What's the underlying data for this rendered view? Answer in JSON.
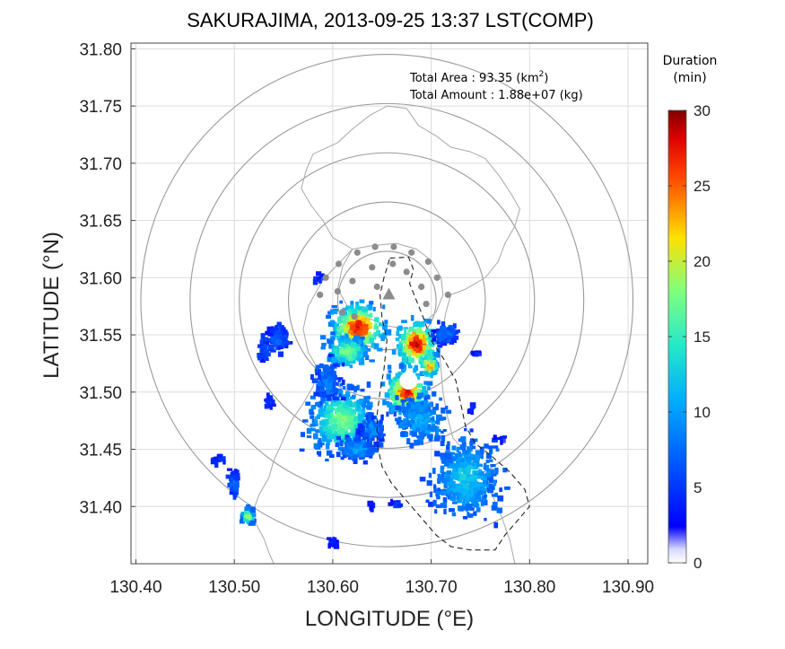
{
  "chart_data": {
    "type": "heatmap",
    "title": "SAKURAJIMA, 2013-09-25 13:37 LST(COMP)",
    "xlabel": "LONGITUDE (°E)",
    "ylabel": "LATITUDE (°N)",
    "xlim": [
      130.395,
      130.92
    ],
    "ylim": [
      31.35,
      31.805
    ],
    "xticks": [
      "130.40",
      "130.50",
      "130.60",
      "130.70",
      "130.80",
      "130.90"
    ],
    "xtick_values": [
      130.4,
      130.5,
      130.6,
      130.7,
      130.8,
      130.9
    ],
    "yticks": [
      "31.40",
      "31.45",
      "31.50",
      "31.55",
      "31.60",
      "31.65",
      "31.70",
      "31.75",
      "31.80"
    ],
    "ytick_values": [
      31.4,
      31.45,
      31.5,
      31.55,
      31.6,
      31.65,
      31.7,
      31.75,
      31.8
    ],
    "grid": true,
    "annotations": {
      "area_label": "Total Area   : 93.35 (km",
      "area_sup": "2",
      "area_close": ")",
      "amount_label": "Total Amount : 1.88e+07 (kg)"
    },
    "colorbar": {
      "title_line1": "Duration",
      "title_line2": "(min)",
      "min": 0,
      "max": 30,
      "ticks": [
        "0",
        "5",
        "10",
        "15",
        "20",
        "25",
        "30"
      ],
      "tick_values": [
        0,
        5,
        10,
        15,
        20,
        25,
        30
      ]
    },
    "range_rings": {
      "center": [
        130.655,
        31.58
      ],
      "radius_deg": [
        0.05,
        0.1,
        0.15,
        0.2,
        0.25
      ]
    },
    "vent": [
      130.657,
      31.585
    ],
    "stations": [
      [
        130.625,
        31.622
      ],
      [
        130.643,
        31.627
      ],
      [
        130.662,
        31.627
      ],
      [
        130.68,
        31.622
      ],
      [
        130.697,
        31.614
      ],
      [
        130.606,
        31.612
      ],
      [
        130.593,
        31.6
      ],
      [
        130.587,
        31.585
      ],
      [
        130.706,
        31.6
      ],
      [
        130.717,
        31.585
      ],
      [
        130.61,
        31.57
      ],
      [
        130.622,
        31.566
      ],
      [
        130.64,
        31.609
      ],
      [
        130.661,
        31.612
      ],
      [
        130.675,
        31.605
      ],
      [
        130.69,
        31.592
      ],
      [
        130.62,
        31.597
      ],
      [
        130.605,
        31.588
      ],
      [
        130.695,
        31.577
      ],
      [
        130.645,
        31.592
      ]
    ],
    "coastline": [
      [
        130.62,
        31.625
      ],
      [
        130.6,
        31.635
      ],
      [
        130.59,
        31.65
      ],
      [
        130.578,
        31.663
      ],
      [
        130.568,
        31.678
      ],
      [
        130.573,
        31.694
      ],
      [
        130.58,
        31.708
      ],
      [
        130.605,
        31.718
      ],
      [
        130.62,
        31.73
      ],
      [
        130.638,
        31.742
      ],
      [
        130.655,
        31.75
      ],
      [
        130.675,
        31.748
      ],
      [
        130.687,
        31.733
      ],
      [
        130.705,
        31.724
      ],
      [
        130.72,
        31.714
      ],
      [
        130.74,
        31.71
      ],
      [
        130.755,
        31.704
      ],
      [
        130.77,
        31.688
      ],
      [
        130.782,
        31.672
      ],
      [
        130.79,
        31.66
      ],
      [
        130.785,
        31.645
      ],
      [
        130.775,
        31.63
      ],
      [
        130.768,
        31.614
      ],
      [
        130.755,
        31.6
      ],
      [
        130.735,
        31.59
      ],
      [
        130.72,
        31.585
      ],
      [
        130.715,
        31.57
      ],
      [
        130.712,
        31.556
      ],
      [
        130.708,
        31.54
      ],
      [
        130.71,
        31.52
      ],
      [
        130.712,
        31.5
      ],
      [
        130.716,
        31.48
      ],
      [
        130.722,
        31.46
      ],
      [
        130.738,
        31.445
      ],
      [
        130.752,
        31.43
      ],
      [
        130.762,
        31.41
      ],
      [
        130.772,
        31.39
      ],
      [
        130.78,
        31.37
      ],
      [
        130.785,
        31.35
      ]
    ],
    "coastline_west": [
      [
        130.62,
        31.625
      ],
      [
        130.59,
        31.598
      ],
      [
        130.575,
        31.575
      ],
      [
        130.57,
        31.555
      ],
      [
        130.575,
        31.535
      ],
      [
        130.585,
        31.52
      ],
      [
        130.58,
        31.505
      ],
      [
        130.57,
        31.49
      ],
      [
        130.558,
        31.475
      ],
      [
        130.548,
        31.455
      ],
      [
        130.54,
        31.44
      ],
      [
        130.535,
        31.425
      ],
      [
        130.525,
        31.41
      ],
      [
        130.52,
        31.398
      ],
      [
        130.522,
        31.385
      ],
      [
        130.53,
        31.372
      ],
      [
        130.535,
        31.36
      ],
      [
        130.54,
        31.35
      ]
    ],
    "sakurajima_outline": [
      [
        130.62,
        31.625
      ],
      [
        130.64,
        31.628
      ],
      [
        130.665,
        31.63
      ],
      [
        130.685,
        31.625
      ],
      [
        130.7,
        31.615
      ],
      [
        130.71,
        31.6
      ],
      [
        130.712,
        31.585
      ],
      [
        130.705,
        31.57
      ],
      [
        130.692,
        31.56
      ],
      [
        130.675,
        31.555
      ],
      [
        130.655,
        31.558
      ],
      [
        130.635,
        31.565
      ],
      [
        130.615,
        31.575
      ],
      [
        130.605,
        31.59
      ],
      [
        130.61,
        31.61
      ],
      [
        130.62,
        31.625
      ]
    ],
    "dashed_region": [
      [
        130.658,
        31.617
      ],
      [
        130.677,
        31.618
      ],
      [
        130.682,
        31.607
      ],
      [
        130.678,
        31.595
      ],
      [
        130.685,
        31.58
      ],
      [
        130.692,
        31.565
      ],
      [
        130.7,
        31.545
      ],
      [
        130.712,
        31.53
      ],
      [
        130.725,
        31.51
      ],
      [
        130.73,
        31.49
      ],
      [
        130.735,
        31.47
      ],
      [
        130.745,
        31.455
      ],
      [
        130.76,
        31.445
      ],
      [
        130.78,
        31.43
      ],
      [
        130.795,
        31.415
      ],
      [
        130.8,
        31.4
      ],
      [
        130.79,
        31.39
      ],
      [
        130.775,
        31.375
      ],
      [
        130.765,
        31.362
      ],
      [
        130.74,
        31.362
      ],
      [
        130.72,
        31.365
      ],
      [
        130.705,
        31.375
      ],
      [
        130.69,
        31.39
      ],
      [
        130.675,
        31.405
      ],
      [
        130.66,
        31.42
      ],
      [
        130.65,
        31.435
      ],
      [
        130.645,
        31.455
      ],
      [
        130.645,
        31.48
      ],
      [
        130.648,
        31.5
      ],
      [
        130.652,
        31.52
      ],
      [
        130.655,
        31.545
      ],
      [
        130.65,
        31.565
      ],
      [
        130.648,
        31.585
      ],
      [
        130.652,
        31.6
      ],
      [
        130.658,
        31.617
      ]
    ],
    "clusters": [
      {
        "lon": 130.626,
        "lat": 31.556,
        "rx": 0.028,
        "ry": 0.022,
        "peak": 28,
        "base": 7,
        "count": 230
      },
      {
        "lon": 130.615,
        "lat": 31.535,
        "rx": 0.022,
        "ry": 0.014,
        "peak": 18,
        "base": 7,
        "count": 150
      },
      {
        "lon": 130.685,
        "lat": 31.542,
        "rx": 0.02,
        "ry": 0.02,
        "peak": 29,
        "base": 8,
        "count": 220
      },
      {
        "lon": 130.675,
        "lat": 31.5,
        "rx": 0.022,
        "ry": 0.02,
        "peak": 28,
        "base": 7,
        "count": 250
      },
      {
        "lon": 130.69,
        "lat": 31.475,
        "rx": 0.025,
        "ry": 0.02,
        "peak": 10,
        "base": 7,
        "count": 200
      },
      {
        "lon": 130.698,
        "lat": 31.523,
        "rx": 0.008,
        "ry": 0.01,
        "peak": 26,
        "base": 8,
        "count": 60
      },
      {
        "lon": 130.735,
        "lat": 31.425,
        "rx": 0.035,
        "ry": 0.035,
        "peak": 12,
        "base": 6,
        "count": 420
      },
      {
        "lon": 130.61,
        "lat": 31.475,
        "rx": 0.035,
        "ry": 0.03,
        "peak": 18,
        "base": 6,
        "count": 380
      },
      {
        "lon": 130.625,
        "lat": 31.45,
        "rx": 0.02,
        "ry": 0.012,
        "peak": 10,
        "base": 5,
        "count": 120
      },
      {
        "lon": 130.595,
        "lat": 31.51,
        "rx": 0.015,
        "ry": 0.02,
        "peak": 8,
        "base": 5,
        "count": 120
      },
      {
        "lon": 130.545,
        "lat": 31.547,
        "rx": 0.012,
        "ry": 0.012,
        "peak": 7,
        "base": 4,
        "count": 90
      },
      {
        "lon": 130.53,
        "lat": 31.538,
        "rx": 0.006,
        "ry": 0.012,
        "peak": 6,
        "base": 4,
        "count": 40
      },
      {
        "lon": 130.715,
        "lat": 31.55,
        "rx": 0.012,
        "ry": 0.01,
        "peak": 8,
        "base": 4,
        "count": 80
      },
      {
        "lon": 130.5,
        "lat": 31.42,
        "rx": 0.006,
        "ry": 0.016,
        "peak": 7,
        "base": 4,
        "count": 50
      },
      {
        "lon": 130.514,
        "lat": 31.392,
        "rx": 0.006,
        "ry": 0.008,
        "peak": 19,
        "base": 6,
        "count": 50
      },
      {
        "lon": 130.485,
        "lat": 31.441,
        "rx": 0.006,
        "ry": 0.004,
        "peak": 5,
        "base": 3,
        "count": 14
      },
      {
        "lon": 130.536,
        "lat": 31.492,
        "rx": 0.006,
        "ry": 0.006,
        "peak": 5,
        "base": 3,
        "count": 18
      },
      {
        "lon": 130.64,
        "lat": 31.468,
        "rx": 0.012,
        "ry": 0.012,
        "peak": 9,
        "base": 5,
        "count": 70
      },
      {
        "lon": 130.665,
        "lat": 31.402,
        "rx": 0.005,
        "ry": 0.004,
        "peak": 5,
        "base": 3,
        "count": 10
      },
      {
        "lon": 130.64,
        "lat": 31.4,
        "rx": 0.004,
        "ry": 0.004,
        "peak": 4,
        "base": 3,
        "count": 6
      },
      {
        "lon": 130.6,
        "lat": 31.368,
        "rx": 0.006,
        "ry": 0.005,
        "peak": 5,
        "base": 3,
        "count": 12
      },
      {
        "lon": 130.745,
        "lat": 31.532,
        "rx": 0.005,
        "ry": 0.006,
        "peak": 4,
        "base": 3,
        "count": 10
      },
      {
        "lon": 130.77,
        "lat": 31.46,
        "rx": 0.005,
        "ry": 0.003,
        "peak": 4,
        "base": 3,
        "count": 6
      },
      {
        "lon": 130.74,
        "lat": 31.485,
        "rx": 0.004,
        "ry": 0.003,
        "peak": 4,
        "base": 3,
        "count": 6
      },
      {
        "lon": 130.585,
        "lat": 31.6,
        "rx": 0.006,
        "ry": 0.006,
        "peak": 4,
        "base": 3,
        "count": 10
      }
    ]
  }
}
